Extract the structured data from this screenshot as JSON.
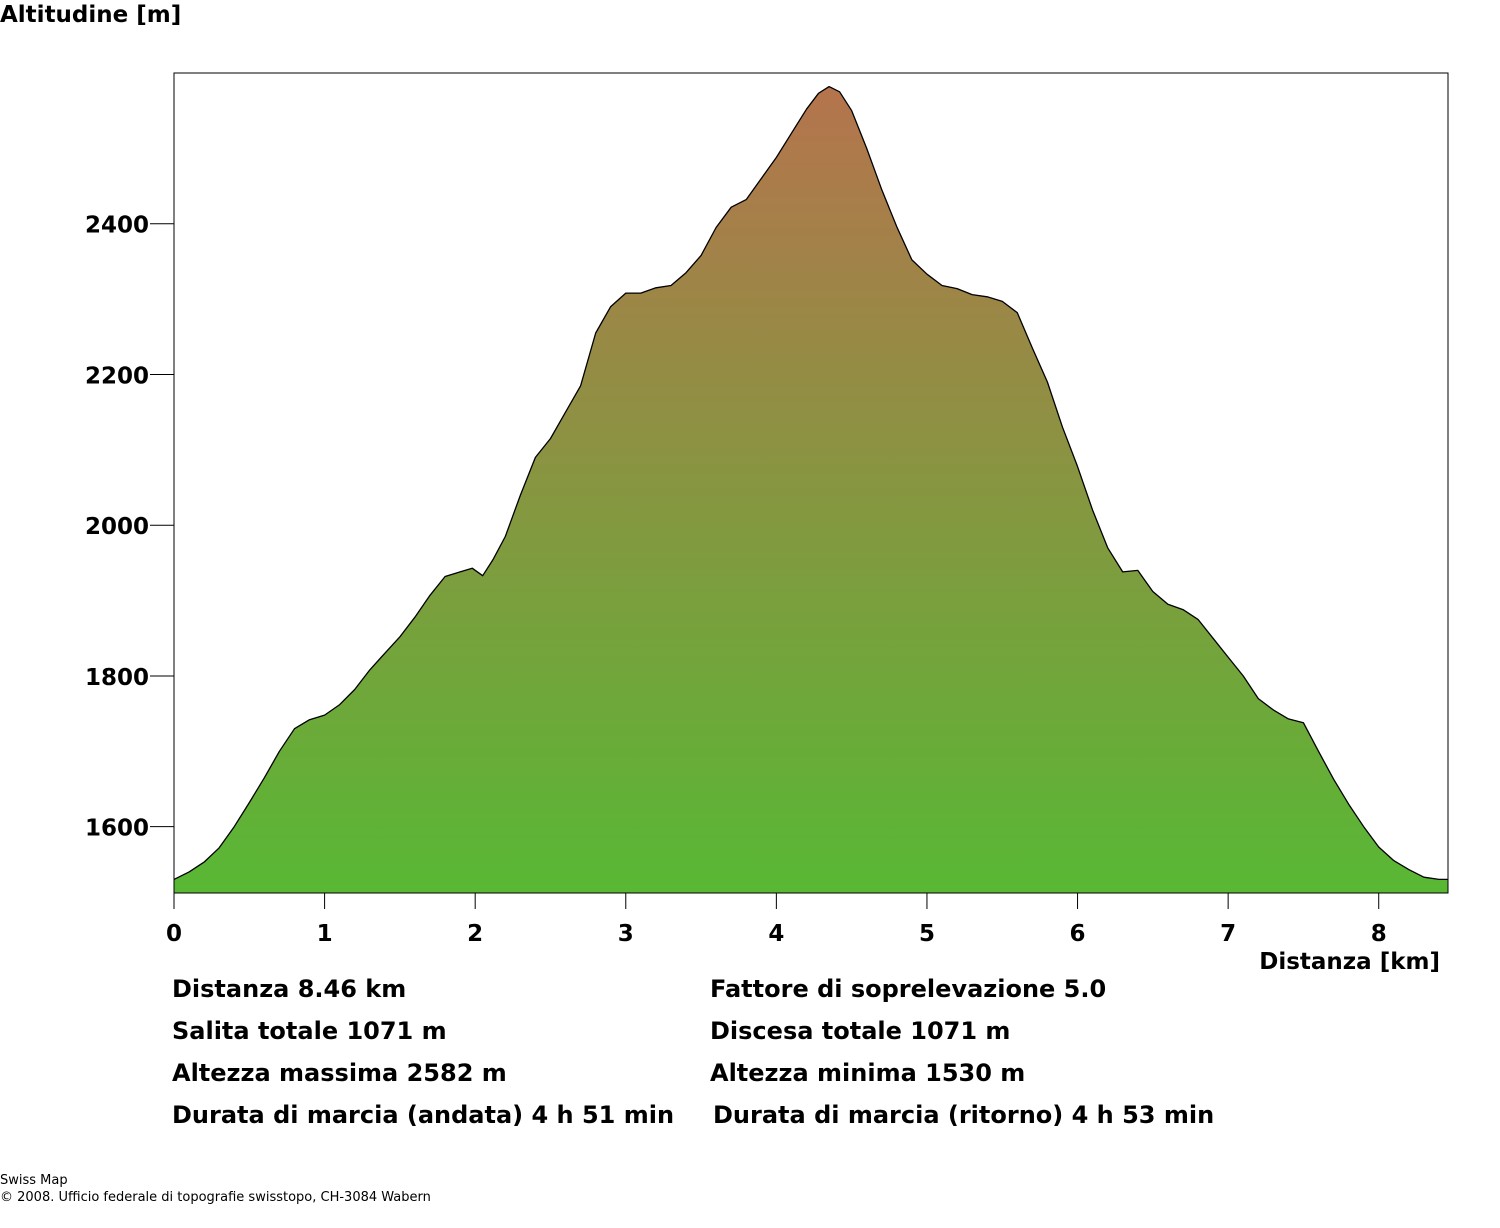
{
  "chart_data": {
    "type": "area",
    "ylabel": "Altitudine [m]",
    "xlabel": "Distanza [km]",
    "xlim": [
      0,
      8.46
    ],
    "ylim": [
      1512,
      2600
    ],
    "x_ticks": [
      0,
      1,
      2,
      3,
      4,
      5,
      6,
      7,
      8
    ],
    "y_ticks": [
      1600,
      1800,
      2000,
      2200,
      2400
    ],
    "grid": false,
    "colors": {
      "low": "#58b834",
      "high": "#b5744d",
      "line": "#000000"
    },
    "profile": [
      [
        0.0,
        1530
      ],
      [
        0.1,
        1540
      ],
      [
        0.2,
        1553
      ],
      [
        0.3,
        1572
      ],
      [
        0.4,
        1600
      ],
      [
        0.5,
        1632
      ],
      [
        0.6,
        1665
      ],
      [
        0.7,
        1700
      ],
      [
        0.8,
        1730
      ],
      [
        0.9,
        1742
      ],
      [
        1.0,
        1748
      ],
      [
        1.1,
        1762
      ],
      [
        1.2,
        1782
      ],
      [
        1.3,
        1808
      ],
      [
        1.4,
        1830
      ],
      [
        1.5,
        1852
      ],
      [
        1.6,
        1878
      ],
      [
        1.7,
        1907
      ],
      [
        1.8,
        1932
      ],
      [
        1.9,
        1938
      ],
      [
        1.98,
        1943
      ],
      [
        2.05,
        1933
      ],
      [
        2.12,
        1955
      ],
      [
        2.2,
        1985
      ],
      [
        2.3,
        2040
      ],
      [
        2.4,
        2090
      ],
      [
        2.5,
        2115
      ],
      [
        2.6,
        2150
      ],
      [
        2.7,
        2185
      ],
      [
        2.8,
        2255
      ],
      [
        2.9,
        2290
      ],
      [
        3.0,
        2308
      ],
      [
        3.1,
        2308
      ],
      [
        3.2,
        2315
      ],
      [
        3.3,
        2318
      ],
      [
        3.4,
        2335
      ],
      [
        3.5,
        2358
      ],
      [
        3.6,
        2395
      ],
      [
        3.7,
        2422
      ],
      [
        3.8,
        2432
      ],
      [
        3.9,
        2460
      ],
      [
        4.0,
        2488
      ],
      [
        4.1,
        2520
      ],
      [
        4.2,
        2552
      ],
      [
        4.28,
        2573
      ],
      [
        4.35,
        2582
      ],
      [
        4.42,
        2575
      ],
      [
        4.5,
        2550
      ],
      [
        4.6,
        2500
      ],
      [
        4.7,
        2445
      ],
      [
        4.8,
        2396
      ],
      [
        4.9,
        2352
      ],
      [
        5.0,
        2333
      ],
      [
        5.1,
        2318
      ],
      [
        5.2,
        2314
      ],
      [
        5.3,
        2306
      ],
      [
        5.4,
        2303
      ],
      [
        5.5,
        2297
      ],
      [
        5.6,
        2282
      ],
      [
        5.7,
        2235
      ],
      [
        5.8,
        2190
      ],
      [
        5.9,
        2130
      ],
      [
        6.0,
        2078
      ],
      [
        6.1,
        2020
      ],
      [
        6.2,
        1970
      ],
      [
        6.3,
        1938
      ],
      [
        6.4,
        1940
      ],
      [
        6.5,
        1912
      ],
      [
        6.6,
        1895
      ],
      [
        6.7,
        1888
      ],
      [
        6.8,
        1875
      ],
      [
        6.9,
        1850
      ],
      [
        7.0,
        1825
      ],
      [
        7.1,
        1800
      ],
      [
        7.2,
        1770
      ],
      [
        7.3,
        1755
      ],
      [
        7.4,
        1743
      ],
      [
        7.5,
        1738
      ],
      [
        7.6,
        1700
      ],
      [
        7.7,
        1663
      ],
      [
        7.8,
        1630
      ],
      [
        7.9,
        1600
      ],
      [
        8.0,
        1573
      ],
      [
        8.1,
        1555
      ],
      [
        8.2,
        1543
      ],
      [
        8.3,
        1533
      ],
      [
        8.4,
        1530
      ],
      [
        8.46,
        1530
      ]
    ]
  },
  "stats": {
    "distanza": "Distanza 8.46 km",
    "fattore": "Fattore di soprelevazione 5.0",
    "salita": "Salita totale  1071 m",
    "discesa": "Discesa totale  1071 m",
    "alt_max": "Altezza massima  2582 m",
    "alt_min": "Altezza minima  1530 m",
    "durata_andata": "Durata di marcia (andata)  4 h 51 min",
    "durata_ritorno": "Durata di marcia (ritorno)  4 h 53 min"
  },
  "footer": {
    "source": "Swiss Map",
    "copyright": "© 2008. Ufficio federale di topografie swisstopo, CH-3084 Wabern"
  }
}
